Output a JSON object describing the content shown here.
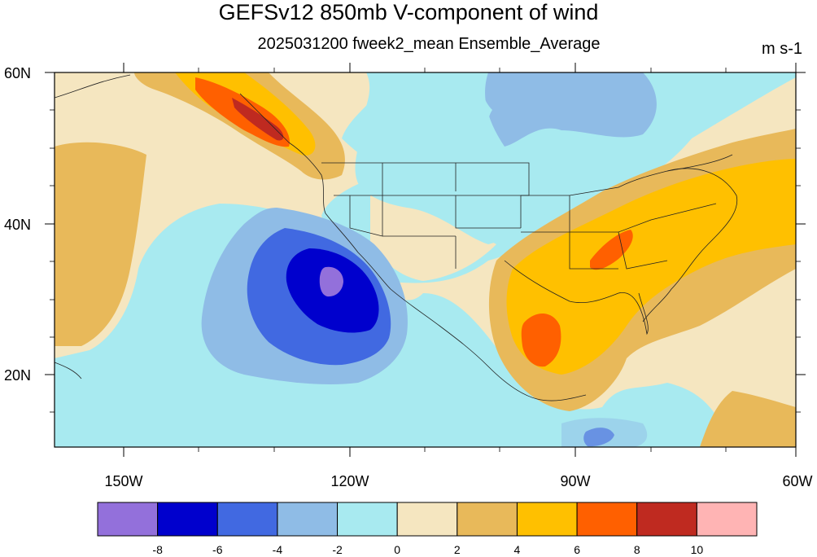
{
  "title": "GEFSv12 850mb V-component of wind",
  "subtitle": "2025031200 fweek2_mean Ensemble_Average",
  "units": "m s-1",
  "map": {
    "projection": "cylindrical equidistant",
    "lon_range": [
      -160,
      -60
    ],
    "lat_range": [
      10,
      60
    ],
    "lon_ticks": [
      "150W",
      "120W",
      "90W",
      "60W"
    ],
    "lat_ticks": [
      "60N",
      "40N",
      "20N"
    ]
  },
  "colorbar": {
    "levels": [
      "-8",
      "-6",
      "-4",
      "-2",
      "0",
      "2",
      "4",
      "6",
      "8",
      "10"
    ],
    "colors": [
      "#9370db",
      "#0000cd",
      "#4169e1",
      "#8fbce6",
      "#a8eaf0",
      "#f5e6c0",
      "#e8b95a",
      "#ffc000",
      "#ff6000",
      "#bf2a20",
      "#ffb4b4"
    ]
  },
  "features": {
    "negative_center": "Pacific west of Baja California (about 32N 121W), below -8 m s-1",
    "positive_centers": [
      "British Columbia coast (above 8)",
      "Western Gulf of Mexico (above 6)",
      "Tennessee/Kentucky (above 6)"
    ]
  }
}
